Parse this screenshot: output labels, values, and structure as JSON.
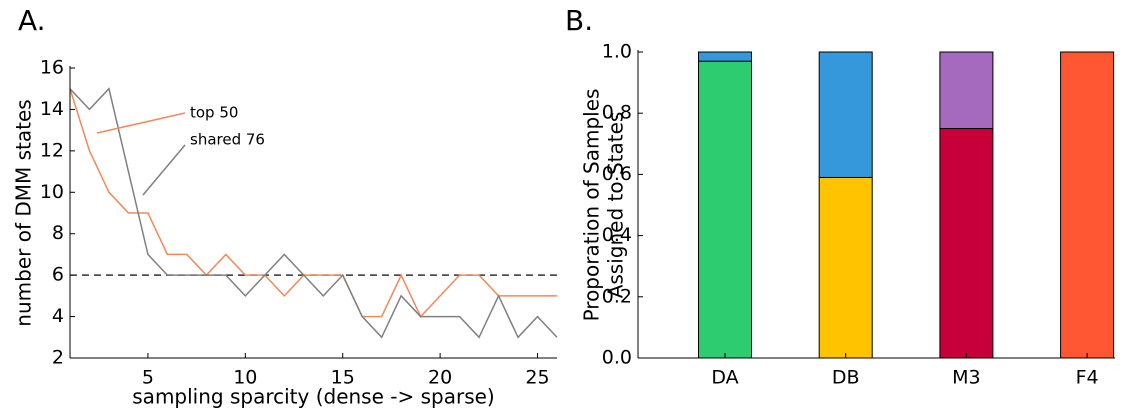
{
  "chart_data": [
    {
      "type": "line",
      "panel_label": "A.",
      "xlabel": "sampling sparcity (dense -> sparse)",
      "ylabel": "number of DMM states",
      "x": [
        1,
        2,
        3,
        4,
        5,
        6,
        7,
        8,
        9,
        10,
        11,
        12,
        13,
        14,
        15,
        16,
        17,
        18,
        19,
        20,
        21,
        22,
        23,
        24,
        25,
        26
      ],
      "series": [
        {
          "name": "top 50",
          "color": "#f08a5a",
          "values": [
            15,
            12,
            10,
            9,
            9,
            7,
            7,
            6,
            7,
            6,
            6,
            5,
            6,
            6,
            6,
            4,
            4,
            6,
            4,
            5,
            6,
            6,
            5,
            5,
            5,
            5
          ]
        },
        {
          "name": "shared 76",
          "color": "#808080",
          "values": [
            15,
            14,
            15,
            11,
            7,
            6,
            6,
            6,
            6,
            5,
            6,
            7,
            6,
            5,
            6,
            4,
            3,
            5,
            4,
            4,
            4,
            3,
            5,
            3,
            4,
            3
          ]
        }
      ],
      "hline": 6,
      "xlim": [
        1,
        26
      ],
      "xticks": [
        5,
        10,
        15,
        20,
        25
      ],
      "ylim": [
        2,
        16
      ],
      "yticks": [
        2,
        4,
        6,
        8,
        10,
        12,
        14,
        16
      ]
    },
    {
      "type": "stacked_bar",
      "panel_label": "B.",
      "ylabel": [
        "Proporation of Samples",
        "Assigned to States"
      ],
      "categories": [
        "DA",
        "DB",
        "M3",
        "F4"
      ],
      "series": [
        {
          "color": "#2ecc71",
          "values": [
            0.97,
            null,
            null,
            null
          ]
        },
        {
          "color": "#ffc300",
          "values": [
            null,
            0.59,
            null,
            null
          ]
        },
        {
          "color": "#c70039",
          "values": [
            null,
            null,
            0.75,
            null
          ]
        },
        {
          "color": "#ff5733",
          "values": [
            null,
            null,
            null,
            1.0
          ]
        },
        {
          "color": "#3498db",
          "values": [
            0.03,
            0.41,
            null,
            null
          ]
        },
        {
          "color": "#a569bd",
          "values": [
            null,
            null,
            0.25,
            null
          ]
        }
      ],
      "ylim": [
        0,
        1
      ],
      "yticks": [
        {
          "value": 0,
          "label": "0.0"
        },
        0.2,
        0.4,
        0.6,
        0.8,
        {
          "value": 1,
          "label": "1.0"
        }
      ]
    }
  ]
}
